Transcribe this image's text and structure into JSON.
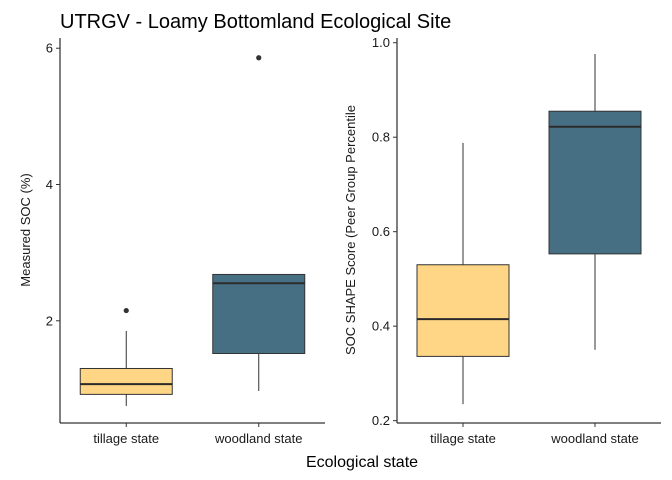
{
  "title": "UTRGV - Loamy Bottomland Ecological Site",
  "shared_xlabel": "Ecological state",
  "colors": {
    "tillage state": "#FFD685",
    "woodland state": "#476F84"
  },
  "chart_data": [
    {
      "type": "boxplot",
      "categories": [
        "tillage state",
        "woodland state"
      ],
      "ylabel": "Measured SOC (%)",
      "ylim": [
        0.5,
        6.15
      ],
      "yticks": [
        2,
        4,
        6
      ],
      "boxes": [
        {
          "category": "tillage state",
          "whisker_low": 0.75,
          "q1": 0.92,
          "median": 1.07,
          "q3": 1.3,
          "whisker_high": 1.85,
          "outliers": [
            2.15
          ]
        },
        {
          "category": "woodland state",
          "whisker_low": 0.97,
          "q1": 1.52,
          "median": 2.55,
          "q3": 2.68,
          "whisker_high": 2.68,
          "outliers": [
            5.86
          ]
        }
      ]
    },
    {
      "type": "boxplot",
      "categories": [
        "tillage state",
        "woodland state"
      ],
      "ylabel": "SOC SHAPE Score (Peer Group Percentile",
      "ylim": [
        0.195,
        1.01
      ],
      "yticks": [
        0.2,
        0.4,
        0.6,
        0.8,
        1.0
      ],
      "ytick_labels": [
        "0.2",
        "0.4",
        "0.6",
        "0.8",
        "1.0"
      ],
      "boxes": [
        {
          "category": "tillage state",
          "whisker_low": 0.235,
          "q1": 0.336,
          "median": 0.415,
          "q3": 0.53,
          "whisker_high": 0.788,
          "outliers": []
        },
        {
          "category": "woodland state",
          "whisker_low": 0.35,
          "q1": 0.553,
          "median": 0.822,
          "q3": 0.855,
          "whisker_high": 0.976,
          "outliers": []
        }
      ]
    }
  ]
}
